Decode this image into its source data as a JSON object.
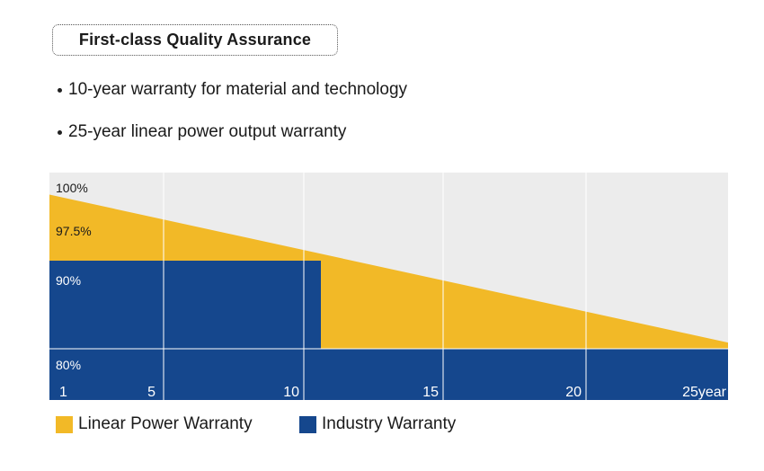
{
  "heading": "First-class Quality Assurance",
  "bullets": [
    "10-year warranty for material and technology",
    "25-year linear power output warranty"
  ],
  "colors": {
    "background_panel": "#ececec",
    "linear": "#f2b927",
    "industry": "#15478d",
    "grid": "#ffffff"
  },
  "chart_data": {
    "type": "area",
    "xlim": [
      0,
      25
    ],
    "ylim": [
      80,
      100
    ],
    "x_tick_labels": [
      "1",
      "5",
      "10",
      "15",
      "20",
      "25year"
    ],
    "y_tick_labels": [
      "100%",
      "97.5%",
      "90%",
      "80%"
    ],
    "series": [
      {
        "name": "Linear Power Warranty",
        "x": [
          0,
          25
        ],
        "y": [
          97.5,
          80.7
        ]
      },
      {
        "name": "Industry Warranty",
        "x": [
          0,
          10,
          10,
          25
        ],
        "y": [
          90,
          90,
          80,
          80
        ]
      }
    ],
    "legend": [
      "Linear Power Warranty",
      "Industry Warranty"
    ],
    "legend_position": "bottom-left"
  }
}
